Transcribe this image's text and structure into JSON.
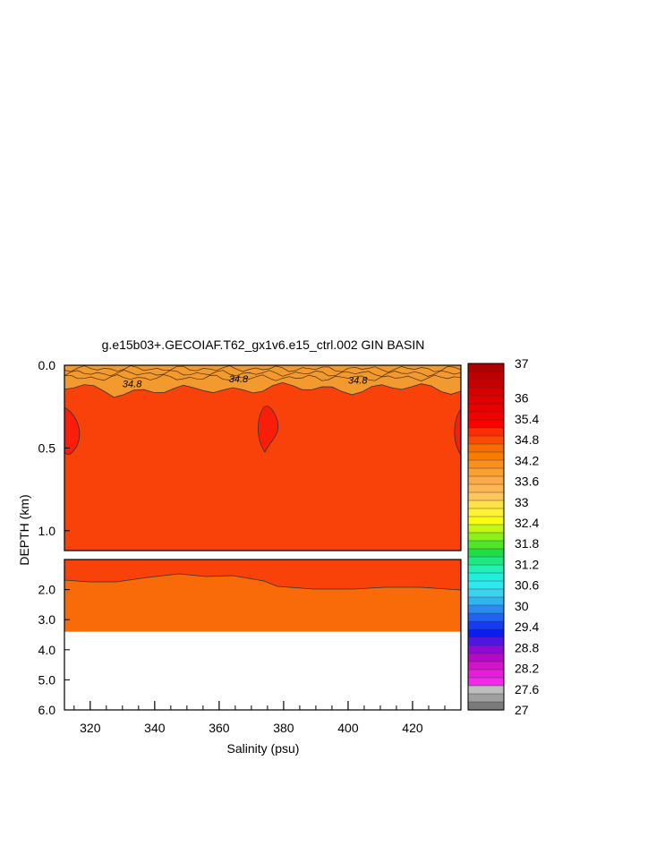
{
  "chart_data": {
    "type": "heatmap",
    "title": "g.e15b03+.GECOIAF.T62_gx1v6.e15_ctrl.002 GIN BASIN",
    "xlabel": "Salinity (psu)",
    "ylabel": "DEPTH (km)",
    "xlim": [
      312,
      435
    ],
    "x_ticks": [
      "320",
      "340",
      "360",
      "380",
      "400",
      "420"
    ],
    "x_tick_values": [
      320,
      340,
      360,
      380,
      400,
      420
    ],
    "upper_panel": {
      "ylim": [
        0.0,
        1.12
      ],
      "y_ticks": [
        "0.0",
        "0.5",
        "1.0"
      ],
      "y_tick_values": [
        0.0,
        0.5,
        1.0
      ]
    },
    "lower_panel": {
      "ylim": [
        1.0,
        6.0
      ],
      "y_ticks": [
        "2.0",
        "3.0",
        "4.0",
        "5.0",
        "6.0"
      ],
      "y_tick_values": [
        2.0,
        3.0,
        4.0,
        5.0,
        6.0
      ],
      "data_bottom": 3.4
    },
    "contour_labels": [
      {
        "text": "34.8",
        "x": 333,
        "depth": 0.11
      },
      {
        "text": "34.8",
        "x": 366,
        "depth": 0.08
      },
      {
        "text": "34.8",
        "x": 403,
        "depth": 0.09
      }
    ],
    "fills": {
      "surface_band": "#f29a2e",
      "main_water": "#f9410a",
      "warm_patch": "#fa1e0a",
      "deep_water": "#f86b08"
    },
    "colorbar": {
      "labels": [
        "37",
        "36",
        "35.4",
        "34.8",
        "34.2",
        "33.6",
        "33",
        "32.4",
        "31.8",
        "31.2",
        "30.6",
        "30",
        "29.4",
        "28.8",
        "28.2",
        "27.6",
        "27"
      ],
      "label_values": [
        37,
        36,
        35.4,
        34.8,
        34.2,
        33.6,
        33,
        32.4,
        31.8,
        31.2,
        30.6,
        30,
        29.4,
        28.8,
        28.2,
        27.6,
        27
      ],
      "range": [
        27,
        37
      ],
      "colors_top_to_bottom": [
        "#b00000",
        "#bd0000",
        "#ca0000",
        "#d60000",
        "#e00000",
        "#ea0000",
        "#f40000",
        "#ff0000",
        "#ff2c00",
        "#fb4a08",
        "#f96c00",
        "#f77d00",
        "#f98f1e",
        "#fba032",
        "#fbab46",
        "#fbb655",
        "#fcc55e",
        "#fde04a",
        "#fff232",
        "#fafa14",
        "#c2f814",
        "#8cf01c",
        "#50e628",
        "#22dc46",
        "#1ee882",
        "#22f0b4",
        "#1ef0dc",
        "#32e6f0",
        "#3cd2f0",
        "#32b4f0",
        "#288cf0",
        "#1e64f0",
        "#143cf0",
        "#0a1ef0",
        "#5014e6",
        "#8c0ad2",
        "#b40ac8",
        "#d214c8",
        "#e61edc",
        "#f02ae6",
        "#bebebe",
        "#a0a0a0",
        "#7a7a7a"
      ]
    }
  }
}
